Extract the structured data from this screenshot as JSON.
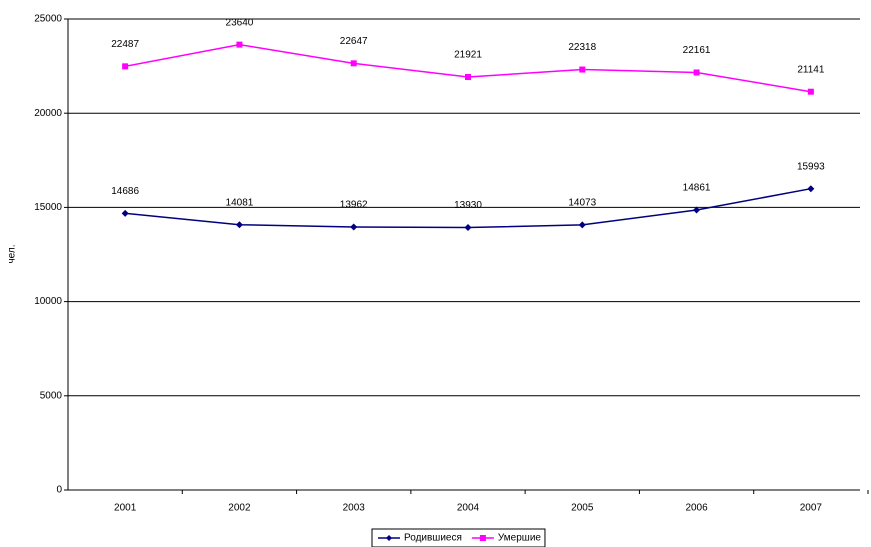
{
  "chart_data": {
    "type": "line",
    "ylabel": "чел.",
    "categories": [
      "2001",
      "2002",
      "2003",
      "2004",
      "2005",
      "2006",
      "2007"
    ],
    "series": [
      {
        "name": "Родившиеся",
        "color": "#000080",
        "values": [
          14686,
          14081,
          13962,
          13930,
          14073,
          14861,
          15993
        ]
      },
      {
        "name": "Умершие",
        "color": "#ff00ff",
        "values": [
          22487,
          23640,
          22647,
          21921,
          22318,
          22161,
          21141
        ]
      }
    ],
    "ylim": [
      0,
      25000
    ],
    "yticks": [
      0,
      5000,
      10000,
      15000,
      20000,
      25000
    ],
    "grid": true,
    "legend": "bottom"
  }
}
